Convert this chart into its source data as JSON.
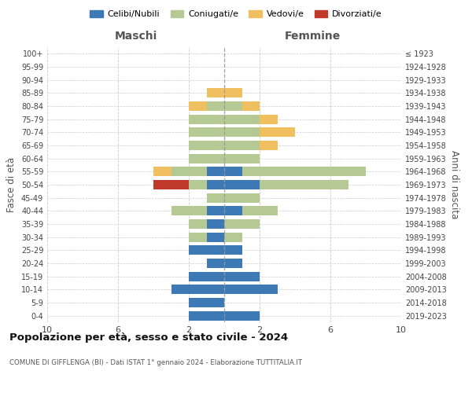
{
  "age_groups": [
    "0-4",
    "5-9",
    "10-14",
    "15-19",
    "20-24",
    "25-29",
    "30-34",
    "35-39",
    "40-44",
    "45-49",
    "50-54",
    "55-59",
    "60-64",
    "65-69",
    "70-74",
    "75-79",
    "80-84",
    "85-89",
    "90-94",
    "95-99",
    "100+"
  ],
  "birth_years": [
    "2019-2023",
    "2014-2018",
    "2009-2013",
    "2004-2008",
    "1999-2003",
    "1994-1998",
    "1989-1993",
    "1984-1988",
    "1979-1983",
    "1974-1978",
    "1969-1973",
    "1964-1968",
    "1959-1963",
    "1954-1958",
    "1949-1953",
    "1944-1948",
    "1939-1943",
    "1934-1938",
    "1929-1933",
    "1924-1928",
    "≤ 1923"
  ],
  "colors": {
    "celibi": "#3d7ab5",
    "coniugati": "#b5c994",
    "vedovi": "#f0c060",
    "divorziati": "#c0392b"
  },
  "maschi": {
    "celibi": [
      2,
      2,
      3,
      2,
      1,
      2,
      1,
      1,
      1,
      0,
      1,
      1,
      0,
      0,
      0,
      0,
      0,
      0,
      0,
      0,
      0
    ],
    "coniugati": [
      0,
      0,
      0,
      0,
      0,
      0,
      1,
      1,
      2,
      1,
      1,
      2,
      2,
      2,
      2,
      2,
      1,
      0,
      0,
      0,
      0
    ],
    "vedovi": [
      0,
      0,
      0,
      0,
      0,
      0,
      0,
      0,
      0,
      0,
      0,
      1,
      0,
      0,
      0,
      0,
      1,
      1,
      0,
      0,
      0
    ],
    "divorziati": [
      0,
      0,
      0,
      0,
      0,
      0,
      0,
      0,
      0,
      0,
      2,
      0,
      0,
      0,
      0,
      0,
      0,
      0,
      0,
      0,
      0
    ]
  },
  "femmine": {
    "celibi": [
      2,
      0,
      3,
      2,
      1,
      1,
      0,
      0,
      1,
      0,
      2,
      1,
      0,
      0,
      0,
      0,
      0,
      0,
      0,
      0,
      0
    ],
    "coniugati": [
      0,
      0,
      0,
      0,
      0,
      0,
      1,
      2,
      2,
      2,
      5,
      7,
      2,
      2,
      2,
      2,
      1,
      0,
      0,
      0,
      0
    ],
    "vedovi": [
      0,
      0,
      0,
      0,
      0,
      0,
      0,
      0,
      0,
      0,
      0,
      0,
      0,
      1,
      2,
      1,
      1,
      1,
      0,
      0,
      0
    ],
    "divorziati": [
      0,
      0,
      0,
      0,
      0,
      0,
      0,
      0,
      0,
      0,
      0,
      0,
      0,
      0,
      0,
      0,
      0,
      0,
      0,
      0,
      0
    ]
  },
  "xlim": 10,
  "title_main": "Popolazione per età, sesso e stato civile - 2024",
  "title_sub": "COMUNE DI GIFFLENGA (BI) - Dati ISTAT 1° gennaio 2024 - Elaborazione TUTTITALIA.IT",
  "ylabel_left": "Fasce di età",
  "ylabel_right": "Anni di nascita",
  "xlabel_maschi": "Maschi",
  "xlabel_femmine": "Femmine",
  "bg_color": "#ffffff",
  "grid_color": "#cccccc",
  "legend_labels": [
    "Celibi/Nubili",
    "Coniugati/e",
    "Vedovi/e",
    "Divorziati/e"
  ]
}
